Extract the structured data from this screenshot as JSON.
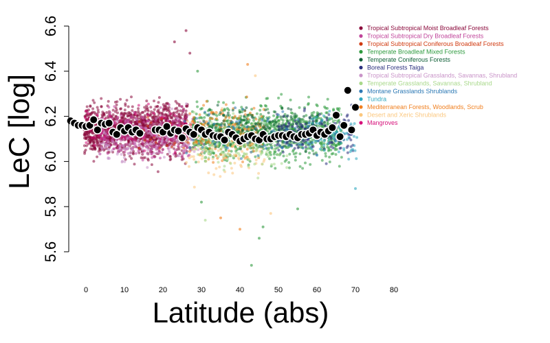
{
  "chart_data": {
    "type": "scatter",
    "xlabel": "Latitude (abs)",
    "ylabel": "LeC [log]",
    "xlim": [
      -4,
      80
    ],
    "ylim": [
      5.6,
      6.6
    ],
    "x_ticks": [
      "0",
      "10",
      "20",
      "30",
      "40",
      "50",
      "60",
      "70",
      "80"
    ],
    "y_ticks": [
      "5.6",
      "5.8",
      "6.0",
      "6.2",
      "6.4",
      "6.6"
    ],
    "legend_position": "top-right",
    "legend": [
      {
        "name": "Tropical Subtropical Moist Broadleaf Forests",
        "color": "#8b0a3c"
      },
      {
        "name": "Tropical Subtropical Dry Broadleaf Forests",
        "color": "#c0449a"
      },
      {
        "name": "Tropical Subtropical Coniferous Broadleaf Forests",
        "color": "#d03a10"
      },
      {
        "name": "Temperate Broadleaf Mixed Forests",
        "color": "#2e9a3e"
      },
      {
        "name": "Temperate Coniferous Forests",
        "color": "#0e5e36"
      },
      {
        "name": "Boreal Forests Taiga",
        "color": "#2a2f7e"
      },
      {
        "name": "Tropical Subtropical Grasslands, Savannas, Shrubland",
        "color": "#c994c8"
      },
      {
        "name": "Temperate Grasslands, Savannas, Shrubland",
        "color": "#a8d88a"
      },
      {
        "name": "Montane Grasslands Shrublands",
        "color": "#2b78b4"
      },
      {
        "name": "Tundra",
        "color": "#2fa8c0"
      },
      {
        "name": "Mediterranean Forests, Woodlands, Scrub",
        "color": "#f07f1e"
      },
      {
        "name": "Desert and Xeric Shrublands",
        "color": "#fbc77e"
      },
      {
        "name": "Mangroves",
        "color": "#d6107a"
      }
    ],
    "clouds": [
      {
        "biome": 0,
        "xmin": 0,
        "xmax": 26,
        "center": 6.14,
        "spread": 0.11,
        "density": 55
      },
      {
        "biome": 1,
        "xmin": 4,
        "xmax": 28,
        "center": 6.12,
        "spread": 0.1,
        "density": 12
      },
      {
        "biome": 6,
        "xmin": 4,
        "xmax": 30,
        "center": 6.1,
        "spread": 0.1,
        "density": 8
      },
      {
        "biome": 3,
        "xmin": 28,
        "xmax": 66,
        "center": 6.13,
        "spread": 0.12,
        "density": 26
      },
      {
        "biome": 10,
        "xmin": 27,
        "xmax": 46,
        "center": 6.13,
        "spread": 0.12,
        "density": 10
      },
      {
        "biome": 11,
        "xmin": 26,
        "xmax": 46,
        "center": 6.05,
        "spread": 0.14,
        "density": 5
      },
      {
        "biome": 7,
        "xmin": 28,
        "xmax": 52,
        "center": 6.08,
        "spread": 0.12,
        "density": 6
      },
      {
        "biome": 4,
        "xmin": 32,
        "xmax": 62,
        "center": 6.15,
        "spread": 0.09,
        "density": 6
      },
      {
        "biome": 5,
        "xmin": 50,
        "xmax": 69,
        "center": 6.13,
        "spread": 0.09,
        "density": 10
      },
      {
        "biome": 8,
        "xmin": 26,
        "xmax": 56,
        "center": 6.12,
        "spread": 0.1,
        "density": 3
      },
      {
        "biome": 9,
        "xmin": 58,
        "xmax": 70,
        "center": 6.12,
        "spread": 0.1,
        "density": 6
      },
      {
        "biome": 12,
        "xmin": 0,
        "xmax": 26,
        "center": 6.14,
        "spread": 0.08,
        "density": 3
      },
      {
        "biome": 2,
        "xmin": 14,
        "xmax": 28,
        "center": 6.13,
        "spread": 0.09,
        "density": 2
      }
    ],
    "means": [
      {
        "x": -4,
        "y": 6.18
      },
      {
        "x": -3,
        "y": 6.17
      },
      {
        "x": -2,
        "y": 6.16
      },
      {
        "x": -1,
        "y": 6.16
      },
      {
        "x": 0,
        "y": 6.155
      },
      {
        "x": 1,
        "y": 6.16
      },
      {
        "x": 2,
        "y": 6.185
      },
      {
        "x": 3,
        "y": 6.14
      },
      {
        "x": 4,
        "y": 6.17
      },
      {
        "x": 5,
        "y": 6.165
      },
      {
        "x": 6,
        "y": 6.17
      },
      {
        "x": 7,
        "y": 6.13
      },
      {
        "x": 8,
        "y": 6.12
      },
      {
        "x": 9,
        "y": 6.15
      },
      {
        "x": 10,
        "y": 6.135
      },
      {
        "x": 11,
        "y": 6.15
      },
      {
        "x": 12,
        "y": 6.13
      },
      {
        "x": 13,
        "y": 6.14
      },
      {
        "x": 14,
        "y": 6.125
      },
      {
        "x": 18,
        "y": 6.14
      },
      {
        "x": 19,
        "y": 6.14
      },
      {
        "x": 20,
        "y": 6.13
      },
      {
        "x": 21,
        "y": 6.155
      },
      {
        "x": 22,
        "y": 6.125
      },
      {
        "x": 23,
        "y": 6.14
      },
      {
        "x": 24,
        "y": 6.135
      },
      {
        "x": 25,
        "y": 6.105
      },
      {
        "x": 26,
        "y": 6.145
      },
      {
        "x": 27,
        "y": 6.13
      },
      {
        "x": 28,
        "y": 6.12
      },
      {
        "x": 29,
        "y": 6.15
      },
      {
        "x": 30,
        "y": 6.14
      },
      {
        "x": 31,
        "y": 6.12
      },
      {
        "x": 32,
        "y": 6.13
      },
      {
        "x": 33,
        "y": 6.115
      },
      {
        "x": 34,
        "y": 6.11
      },
      {
        "x": 35,
        "y": 6.11
      },
      {
        "x": 36,
        "y": 6.095
      },
      {
        "x": 37,
        "y": 6.13
      },
      {
        "x": 38,
        "y": 6.12
      },
      {
        "x": 39,
        "y": 6.105
      },
      {
        "x": 40,
        "y": 6.09
      },
      {
        "x": 41,
        "y": 6.1
      },
      {
        "x": 42,
        "y": 6.11
      },
      {
        "x": 43,
        "y": 6.115
      },
      {
        "x": 44,
        "y": 6.1
      },
      {
        "x": 45,
        "y": 6.095
      },
      {
        "x": 46,
        "y": 6.12
      },
      {
        "x": 47,
        "y": 6.1
      },
      {
        "x": 48,
        "y": 6.1
      },
      {
        "x": 49,
        "y": 6.11
      },
      {
        "x": 50,
        "y": 6.115
      },
      {
        "x": 51,
        "y": 6.115
      },
      {
        "x": 52,
        "y": 6.11
      },
      {
        "x": 53,
        "y": 6.12
      },
      {
        "x": 54,
        "y": 6.11
      },
      {
        "x": 55,
        "y": 6.105
      },
      {
        "x": 56,
        "y": 6.12
      },
      {
        "x": 57,
        "y": 6.12
      },
      {
        "x": 58,
        "y": 6.125
      },
      {
        "x": 59,
        "y": 6.14
      },
      {
        "x": 60,
        "y": 6.115
      },
      {
        "x": 61,
        "y": 6.13
      },
      {
        "x": 62,
        "y": 6.12
      },
      {
        "x": 63,
        "y": 6.135
      },
      {
        "x": 64,
        "y": 6.15
      },
      {
        "x": 65,
        "y": 6.205
      },
      {
        "x": 66,
        "y": 6.11
      },
      {
        "x": 67,
        "y": 6.16
      },
      {
        "x": 68,
        "y": 6.315
      },
      {
        "x": 69,
        "y": 6.14
      },
      {
        "x": 70,
        "y": 6.24
      }
    ],
    "outliers": [
      {
        "x": 23,
        "y": 6.53,
        "biome": 0
      },
      {
        "x": 26,
        "y": 6.58,
        "biome": 0
      },
      {
        "x": 27,
        "y": 6.48,
        "biome": 0
      },
      {
        "x": 29,
        "y": 6.4,
        "biome": 3
      },
      {
        "x": 42,
        "y": 6.43,
        "biome": 10
      },
      {
        "x": 44,
        "y": 6.38,
        "biome": 11
      },
      {
        "x": 43,
        "y": 5.54,
        "biome": 3
      },
      {
        "x": 45,
        "y": 5.66,
        "biome": 3
      },
      {
        "x": 40,
        "y": 5.7,
        "biome": 10
      },
      {
        "x": 30,
        "y": 5.82,
        "biome": 3
      },
      {
        "x": 35,
        "y": 5.75,
        "biome": 10
      },
      {
        "x": 46,
        "y": 5.71,
        "biome": 3
      },
      {
        "x": 69,
        "y": 6.25,
        "biome": 5
      },
      {
        "x": 70,
        "y": 5.88,
        "biome": 9
      },
      {
        "x": 48,
        "y": 5.77,
        "biome": 11
      },
      {
        "x": 31,
        "y": 5.74,
        "biome": 7
      },
      {
        "x": 55,
        "y": 5.79,
        "biome": 3
      }
    ]
  }
}
